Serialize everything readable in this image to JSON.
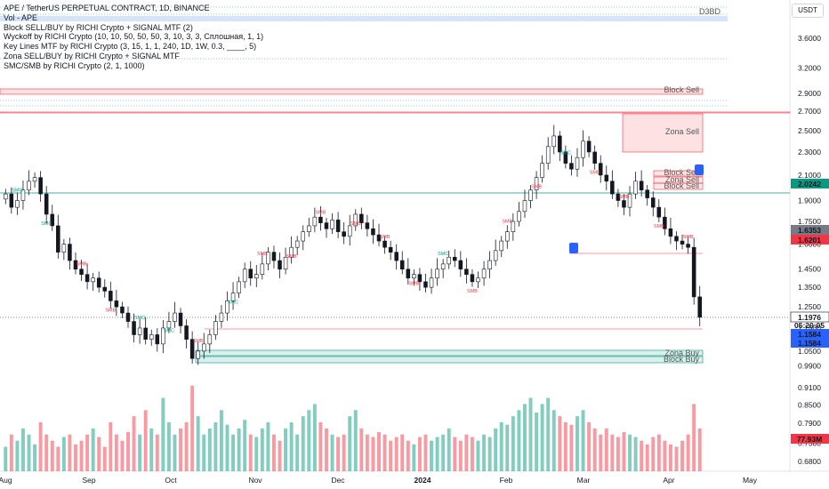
{
  "legend": {
    "title": "APE / TetherUS PERPETUAL CONTRACT, 1D, BINANCE",
    "vol": "Vol - APE",
    "block": "Block SELL/BUY by RICHI Crypto + SIGNAL MTF (2)",
    "wyckoff": "Wyckoff by RICHI Crypto  (10, 10, 50, 50, 50, 3, 10, 3, 3, Сплошная, 1, 1)",
    "keylines": "Key Lines MTF by RICHI Crypto (3, 15, 1, 1, 240, 1D, 1W, 0.3, ____, 5)",
    "zona": "Zona SELL/BUY by RICHI Crypto + SIGNAL MTF",
    "smc": "SMC/SMB by RICHI Crypto (2, 1, 1000)"
  },
  "currency_button": "USDT",
  "d3d_label": "D3BD",
  "chart_data": {
    "type": "candlestick",
    "symbol": "APE / TetherUS PERPETUAL CONTRACT",
    "interval": "1D",
    "y_scale": "log",
    "y_ticks": [
      "3.6000",
      "3.2000",
      "2.9000",
      "2.7000",
      "2.5000",
      "2.3000",
      "2.1000",
      "1.9000",
      "1.7500",
      "1.6000",
      "1.4500",
      "1.3500",
      "1.2500",
      "1.1500",
      "1.0500",
      "0.9900",
      "0.9100",
      "0.8500",
      "0.7900",
      "0.7300",
      "0.6800"
    ],
    "x_ticks": [
      "Aug",
      "Sep",
      "Oct",
      "Nov",
      "Dec",
      "2024",
      "Feb",
      "Mar",
      "Apr",
      "May"
    ],
    "price_labels": [
      {
        "text": "2.0242",
        "color": "#089981"
      },
      {
        "text": "1.6353",
        "color": "#787b86"
      },
      {
        "text": "1.6201",
        "color": "#f23645"
      },
      {
        "text": "1.1976",
        "color": "#131722"
      },
      {
        "text": "05:20:05",
        "color": "#131722"
      },
      {
        "text": "1.1584",
        "color": "#2962ff"
      },
      {
        "text": "1.1584",
        "color": "#2962ff"
      },
      {
        "text": "77.93M",
        "color": "#f23645"
      }
    ],
    "zones": [
      {
        "text": "Block Sell"
      },
      {
        "text": "Zona Sell"
      },
      {
        "text": "Block Sell"
      },
      {
        "text": "Zona Sell"
      },
      {
        "text": "Block Sell"
      },
      {
        "text": "Zona Buy"
      },
      {
        "text": "Block Buy"
      }
    ],
    "markers": [
      "SMC",
      "SMC",
      "SMB",
      "SMB",
      "SMC",
      "SMC",
      "SMB",
      "SMC",
      "SMB",
      "SMB",
      "SMB",
      "SMB",
      "SMB",
      "SMB",
      "SMC",
      "SMB",
      "SMB",
      "SMB",
      "SMC",
      "SMB",
      "SMB",
      "SMB",
      "SMB"
    ],
    "candles_summary": {
      "start_price": 1.9,
      "low_price": 0.99,
      "high_price": 2.68,
      "last_price": 1.1976
    },
    "closes": [
      1.95,
      1.85,
      1.9,
      1.98,
      2.05,
      2.08,
      1.95,
      1.8,
      1.72,
      1.55,
      1.6,
      1.5,
      1.45,
      1.42,
      1.38,
      1.4,
      1.35,
      1.33,
      1.28,
      1.25,
      1.22,
      1.18,
      1.12,
      1.15,
      1.1,
      1.12,
      1.08,
      1.15,
      1.18,
      1.22,
      1.16,
      1.1,
      1.02,
      1.05,
      1.08,
      1.12,
      1.18,
      1.22,
      1.28,
      1.32,
      1.38,
      1.45,
      1.4,
      1.42,
      1.48,
      1.55,
      1.5,
      1.45,
      1.52,
      1.58,
      1.62,
      1.68,
      1.72,
      1.78,
      1.74,
      1.7,
      1.76,
      1.68,
      1.65,
      1.72,
      1.8,
      1.74,
      1.7,
      1.66,
      1.62,
      1.58,
      1.55,
      1.5,
      1.45,
      1.4,
      1.42,
      1.38,
      1.35,
      1.4,
      1.45,
      1.48,
      1.52,
      1.5,
      1.45,
      1.42,
      1.38,
      1.4,
      1.45,
      1.5,
      1.56,
      1.62,
      1.68,
      1.75,
      1.82,
      1.9,
      1.98,
      2.08,
      2.2,
      2.35,
      2.45,
      2.3,
      2.2,
      2.15,
      2.25,
      2.4,
      2.3,
      2.2,
      2.1,
      2.05,
      1.95,
      1.9,
      1.85,
      1.95,
      2.05,
      1.98,
      1.92,
      1.85,
      1.78,
      1.7,
      1.65,
      1.62,
      1.6,
      1.58,
      1.3,
      1.2
    ],
    "volumes": [
      0.2,
      0.3,
      0.25,
      0.35,
      0.3,
      0.22,
      0.4,
      0.3,
      0.25,
      0.2,
      0.28,
      0.3,
      0.22,
      0.25,
      0.3,
      0.35,
      0.28,
      0.2,
      0.4,
      0.3,
      0.25,
      0.32,
      0.45,
      0.3,
      0.5,
      0.35,
      0.3,
      0.6,
      0.4,
      0.3,
      0.35,
      0.4,
      0.7,
      0.45,
      0.3,
      0.35,
      0.4,
      0.5,
      0.38,
      0.3,
      0.35,
      0.42,
      0.3,
      0.28,
      0.35,
      0.4,
      0.3,
      0.25,
      0.35,
      0.4,
      0.3,
      0.45,
      0.5,
      0.55,
      0.4,
      0.35,
      0.3,
      0.28,
      0.3,
      0.45,
      0.5,
      0.35,
      0.3,
      0.28,
      0.32,
      0.3,
      0.25,
      0.28,
      0.3,
      0.25,
      0.22,
      0.28,
      0.3,
      0.25,
      0.28,
      0.3,
      0.35,
      0.28,
      0.25,
      0.3,
      0.28,
      0.25,
      0.3,
      0.28,
      0.35,
      0.4,
      0.38,
      0.45,
      0.5,
      0.55,
      0.6,
      0.48,
      0.55,
      0.6,
      0.5,
      0.45,
      0.4,
      0.38,
      0.45,
      0.5,
      0.4,
      0.35,
      0.3,
      0.35,
      0.3,
      0.28,
      0.32,
      0.3,
      0.28,
      0.25,
      0.22,
      0.28,
      0.3,
      0.25,
      0.22,
      0.2,
      0.25,
      0.3,
      0.55,
      0.35
    ]
  }
}
